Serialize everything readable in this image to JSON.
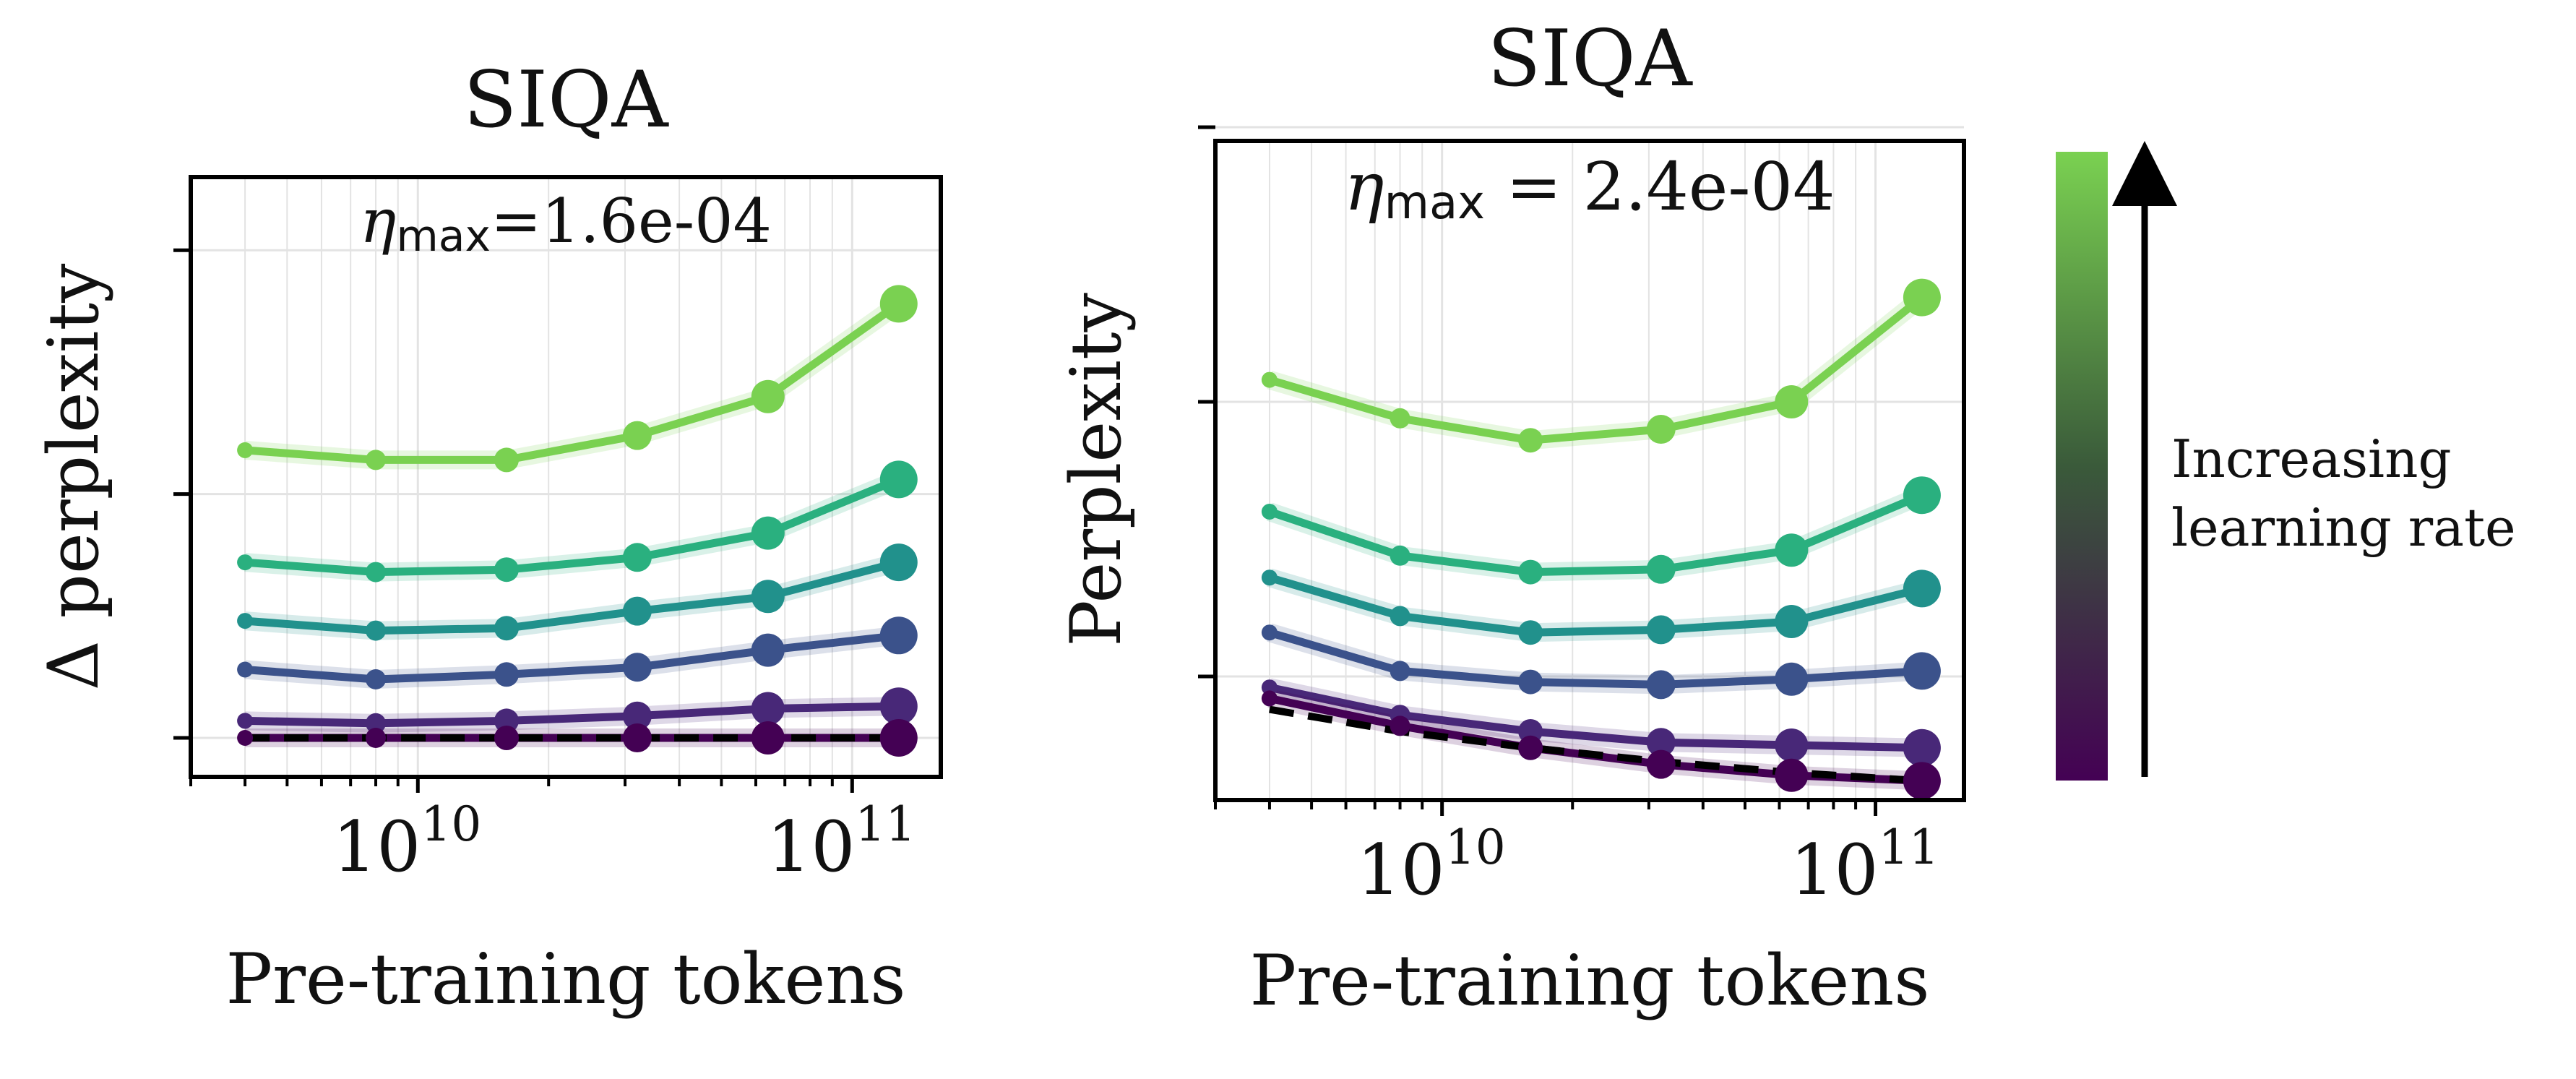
{
  "chart_data": [
    {
      "type": "line",
      "title": "SIQA",
      "xlabel": "Pre-training tokens",
      "ylabel": "Δ perplexity",
      "x_scale": "log",
      "xlim": [
        3000000000.0,
        160000000000.0
      ],
      "ylim": [
        -0.08,
        1.15
      ],
      "x_tick_labels": [
        {
          "base": "10",
          "exp": "10",
          "value": 10000000000.0
        },
        {
          "base": "10",
          "exp": "11",
          "value": 100000000000.0
        }
      ],
      "y_ticks": [
        0,
        0.5,
        1.0
      ],
      "grid": true,
      "annotation": {
        "symbol": "η",
        "subscript": "max",
        "text": "=1.6e-04"
      },
      "x": [
        4000000000.0,
        8000000000.0,
        16000000000.0,
        32000000000.0,
        64000000000.0,
        128000000000.0
      ],
      "series": [
        {
          "color": "#7ad151",
          "values": [
            0.59,
            0.57,
            0.57,
            0.62,
            0.7,
            0.89
          ]
        },
        {
          "color": "#2ab07f",
          "values": [
            0.36,
            0.34,
            0.345,
            0.37,
            0.42,
            0.53
          ]
        },
        {
          "color": "#21918c",
          "values": [
            0.24,
            0.22,
            0.225,
            0.26,
            0.29,
            0.36
          ]
        },
        {
          "color": "#3b528b",
          "values": [
            0.14,
            0.12,
            0.13,
            0.145,
            0.18,
            0.21
          ]
        },
        {
          "color": "#482878",
          "values": [
            0.035,
            0.03,
            0.035,
            0.045,
            0.06,
            0.065
          ]
        },
        {
          "color": "#440154",
          "values": [
            0,
            0,
            0,
            0,
            0,
            0
          ]
        }
      ],
      "baseline": {
        "style": "dashed",
        "color": "#000000",
        "values": [
          0,
          0,
          0,
          0,
          0,
          0
        ]
      }
    },
    {
      "type": "line",
      "title": "SIQA",
      "xlabel": "Pre-training tokens",
      "ylabel": "Perplexity",
      "x_scale": "log",
      "xlim": [
        3000000000.0,
        160000000000.0
      ],
      "ylim": [
        0.275,
        1.475
      ],
      "x_tick_labels": [
        {
          "base": "10",
          "exp": "10",
          "value": 10000000000.0
        },
        {
          "base": "10",
          "exp": "11",
          "value": 100000000000.0
        }
      ],
      "y_ticks": [
        0.5,
        1.0,
        1.5
      ],
      "grid": true,
      "annotation": {
        "symbol": "η",
        "subscript": "max",
        "text": " = 2.4e-04"
      },
      "x": [
        4000000000.0,
        8000000000.0,
        16000000000.0,
        32000000000.0,
        64000000000.0,
        128000000000.0
      ],
      "series": [
        {
          "color": "#7ad151",
          "values": [
            1.04,
            0.97,
            0.93,
            0.95,
            1.0,
            1.19
          ]
        },
        {
          "color": "#2ab07f",
          "values": [
            0.8,
            0.72,
            0.69,
            0.695,
            0.73,
            0.83
          ]
        },
        {
          "color": "#21918c",
          "values": [
            0.68,
            0.61,
            0.58,
            0.585,
            0.6,
            0.66
          ]
        },
        {
          "color": "#3b528b",
          "values": [
            0.58,
            0.51,
            0.49,
            0.485,
            0.495,
            0.51
          ]
        },
        {
          "color": "#482878",
          "values": [
            0.48,
            0.43,
            0.4,
            0.38,
            0.375,
            0.37
          ]
        },
        {
          "color": "#440154",
          "values": [
            0.46,
            0.41,
            0.37,
            0.34,
            0.32,
            0.31
          ]
        }
      ],
      "baseline": {
        "style": "dashed",
        "color": "#000000",
        "values": [
          0.44,
          0.4,
          0.37,
          0.345,
          0.325,
          0.31
        ]
      }
    }
  ],
  "colorbar": {
    "colors": [
      "#440154",
      "#7ad151"
    ],
    "label_lines": [
      "Increasing",
      "learning rate"
    ]
  }
}
